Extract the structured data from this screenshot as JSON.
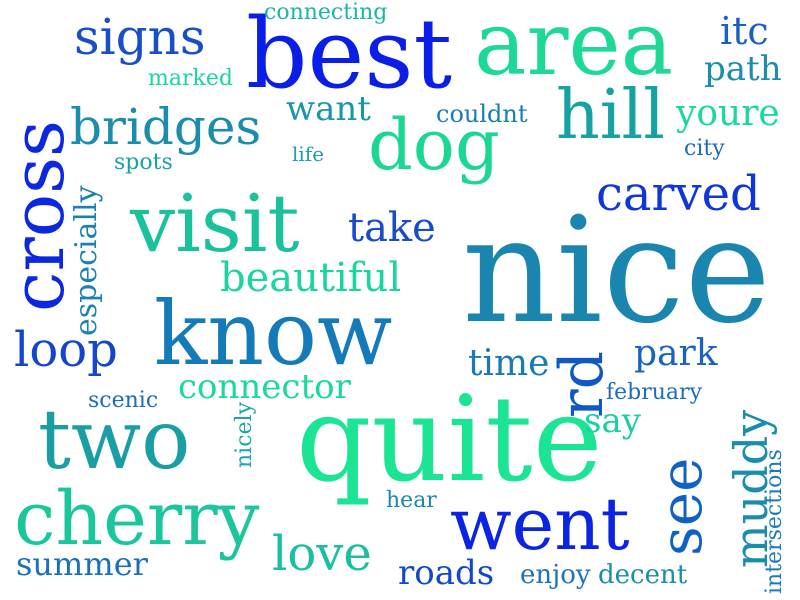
{
  "palette": {
    "background": "#ffffff",
    "blue": "#0a1ee6",
    "royal": "#1740d8",
    "teal_blue": "#1a78b4",
    "teal": "#1aa0a0",
    "green": "#19d68c",
    "mint": "#20e0a0"
  },
  "words": [
    {
      "text": "nice",
      "color": "#1a86b0"
    },
    {
      "text": "quite",
      "color": "#1be594"
    },
    {
      "text": "best",
      "color": "#0a1ee8"
    },
    {
      "text": "area",
      "color": "#1ed896"
    },
    {
      "text": "know",
      "color": "#157ab8"
    },
    {
      "text": "visit",
      "color": "#19c29a"
    },
    {
      "text": "cross",
      "color": "#0b28e0"
    },
    {
      "text": "two",
      "color": "#1a9ea4"
    },
    {
      "text": "went",
      "color": "#0b24e2"
    },
    {
      "text": "cherry",
      "color": "#1cc69c"
    },
    {
      "text": "dog",
      "color": "#1ad892"
    },
    {
      "text": "hill",
      "color": "#16a2a2"
    },
    {
      "text": "see",
      "color": "#0f62c4"
    },
    {
      "text": "rd",
      "color": "#1058c6"
    },
    {
      "text": "carved",
      "color": "#1036d8"
    },
    {
      "text": "bridges",
      "color": "#1a8cac"
    },
    {
      "text": "signs",
      "color": "#1a4ec8"
    },
    {
      "text": "muddy",
      "color": "#1a8cac"
    },
    {
      "text": "love",
      "color": "#1ac09e"
    },
    {
      "text": "loop",
      "color": "#1446cc"
    },
    {
      "text": "beautiful",
      "color": "#1cd4a0"
    },
    {
      "text": "take",
      "color": "#1a4cc6"
    },
    {
      "text": "roads",
      "color": "#1448ca"
    },
    {
      "text": "connector",
      "color": "#1ad8a0"
    },
    {
      "text": "park",
      "color": "#1a62c2"
    },
    {
      "text": "itc",
      "color": "#1a60c4"
    },
    {
      "text": "path",
      "color": "#1a8eaa"
    },
    {
      "text": "youre",
      "color": "#1ad8a0"
    },
    {
      "text": "want",
      "color": "#1a96aa"
    },
    {
      "text": "time",
      "color": "#1a7ab6"
    },
    {
      "text": "say",
      "color": "#1ad0a2"
    },
    {
      "text": "especially",
      "color": "#1a82b2"
    },
    {
      "text": "summer",
      "color": "#1a70ba"
    },
    {
      "text": "couldnt",
      "color": "#1a7cb4"
    },
    {
      "text": "enjoy",
      "color": "#1a74b8"
    },
    {
      "text": "decent",
      "color": "#1a8ea8"
    },
    {
      "text": "intersections",
      "color": "#1a7cb6"
    },
    {
      "text": "connecting",
      "color": "#1ab6a4"
    },
    {
      "text": "marked",
      "color": "#1ad4a2"
    },
    {
      "text": "spots",
      "color": "#1aa0a6"
    },
    {
      "text": "life",
      "color": "#1a9ea8"
    },
    {
      "text": "city",
      "color": "#1a6cbc"
    },
    {
      "text": "february",
      "color": "#1a6cbc"
    },
    {
      "text": "scenic",
      "color": "#1a6cbc"
    },
    {
      "text": "nicely",
      "color": "#1aa6a8"
    },
    {
      "text": "hear",
      "color": "#1a86b2"
    }
  ]
}
